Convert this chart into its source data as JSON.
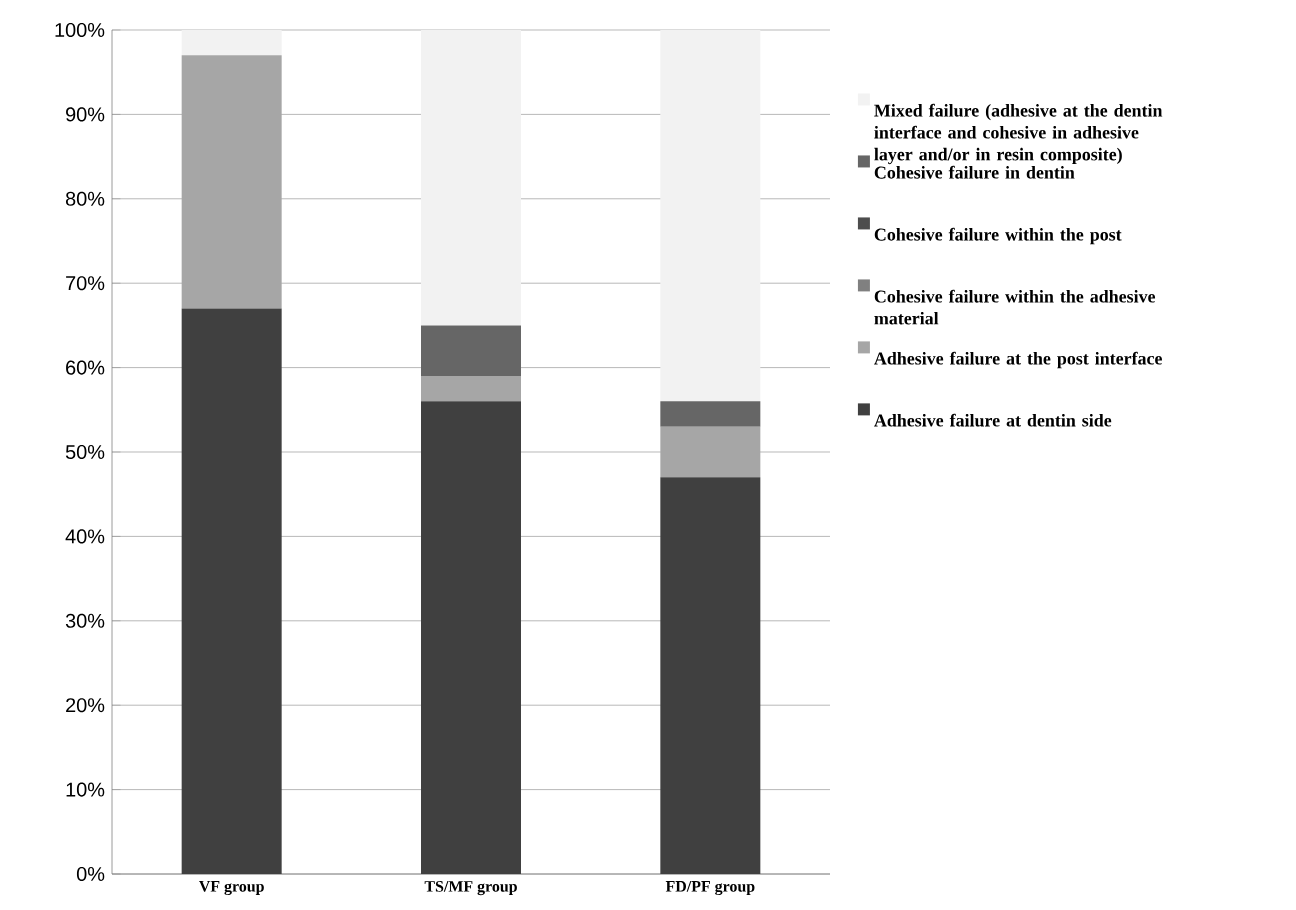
{
  "chart_data": {
    "type": "bar",
    "stacked": true,
    "categories": [
      "VF group",
      "TS/MF group",
      "FD/PF group"
    ],
    "series": [
      {
        "name": "Adhesive failure at dentin side",
        "color": "#404040",
        "values": [
          67,
          56,
          47
        ]
      },
      {
        "name": "Adhesive failure at the post interface",
        "color": "#a6a6a6",
        "values": [
          30,
          3,
          6
        ]
      },
      {
        "name": "Cohesive failure within the adhesive material",
        "color": "#808080",
        "values": [
          0,
          0,
          0
        ]
      },
      {
        "name": "Cohesive failure within the post",
        "color": "#4d4d4d",
        "values": [
          0,
          0,
          0
        ]
      },
      {
        "name": "Cohesive failure in dentin",
        "color": "#666666",
        "values": [
          0,
          6,
          3
        ]
      },
      {
        "name": "Mixed failure (adhesive at the dentin interface and cohesive in adhesive layer and/or in resin composite)",
        "color": "#f2f2f2",
        "values": [
          3,
          35,
          44
        ]
      }
    ],
    "ylim": [
      0,
      100
    ],
    "yticks": [
      {
        "value": 0,
        "label": "0%"
      },
      {
        "value": 10,
        "label": "10%"
      },
      {
        "value": 20,
        "label": "20%"
      },
      {
        "value": 30,
        "label": "30%"
      },
      {
        "value": 40,
        "label": "40%"
      },
      {
        "value": 50,
        "label": "50%"
      },
      {
        "value": 60,
        "label": "60%"
      },
      {
        "value": 70,
        "label": "70%"
      },
      {
        "value": 80,
        "label": "80%"
      },
      {
        "value": 90,
        "label": "90%"
      },
      {
        "value": 100,
        "label": "100%"
      }
    ],
    "grid": "y",
    "legend": "right"
  }
}
